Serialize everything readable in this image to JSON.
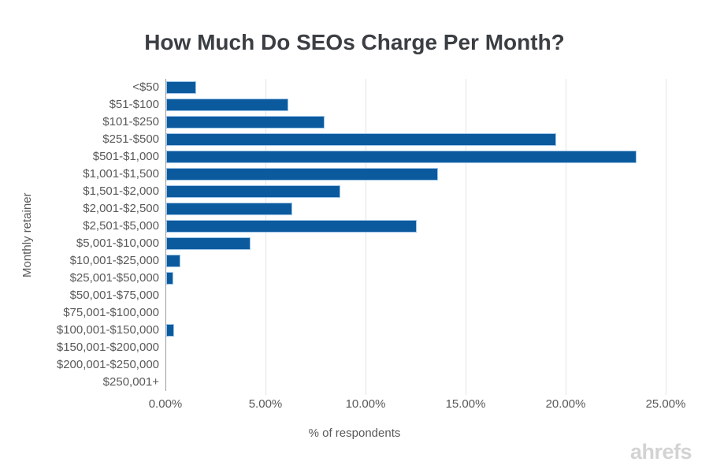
{
  "title": {
    "text": "How Much Do SEOs Charge Per Month?",
    "color": "#3b3e42"
  },
  "watermark": {
    "text": "ahrefs",
    "color": "#d3d3d3"
  },
  "chart_data": {
    "type": "bar",
    "orientation": "horizontal",
    "title": "How Much Do SEOs Charge Per Month?",
    "xlabel": "% of respondents",
    "ylabel": "Monthly retainer",
    "categories": [
      "<$50",
      "$51-$100",
      "$101-$250",
      "$251-$500",
      "$501-$1,000",
      "$1,001-$1,500",
      "$1,501-$2,000",
      "$2,001-$2,500",
      "$2,501-$5,000",
      "$5,001-$10,000",
      "$10,001-$25,000",
      "$25,001-$50,000",
      "$50,001-$75,000",
      "$75,001-$100,000",
      "$100,001-$150,000",
      "$150,001-$200,000",
      "$200,001-$250,000",
      "$250,001+"
    ],
    "values": [
      1.5,
      6.1,
      7.9,
      19.5,
      23.5,
      13.6,
      8.7,
      6.3,
      12.5,
      4.2,
      0.7,
      0.35,
      0,
      0,
      0.4,
      0,
      0,
      0
    ],
    "xlim": [
      0,
      25.4
    ],
    "x_ticks": [
      0,
      5,
      10,
      15,
      20,
      25
    ],
    "x_tick_labels": [
      "0.00%",
      "5.00%",
      "10.00%",
      "15.00%",
      "20.00%",
      "25.00%"
    ],
    "grid": "vertical-only",
    "legend": "none",
    "bar_color": "#0b5a9e",
    "bar_border_color": "#9fc5e8",
    "grid_color": "#e4e4e4",
    "axis_line_color": "#9c9c9c",
    "label_color": "#595959"
  }
}
